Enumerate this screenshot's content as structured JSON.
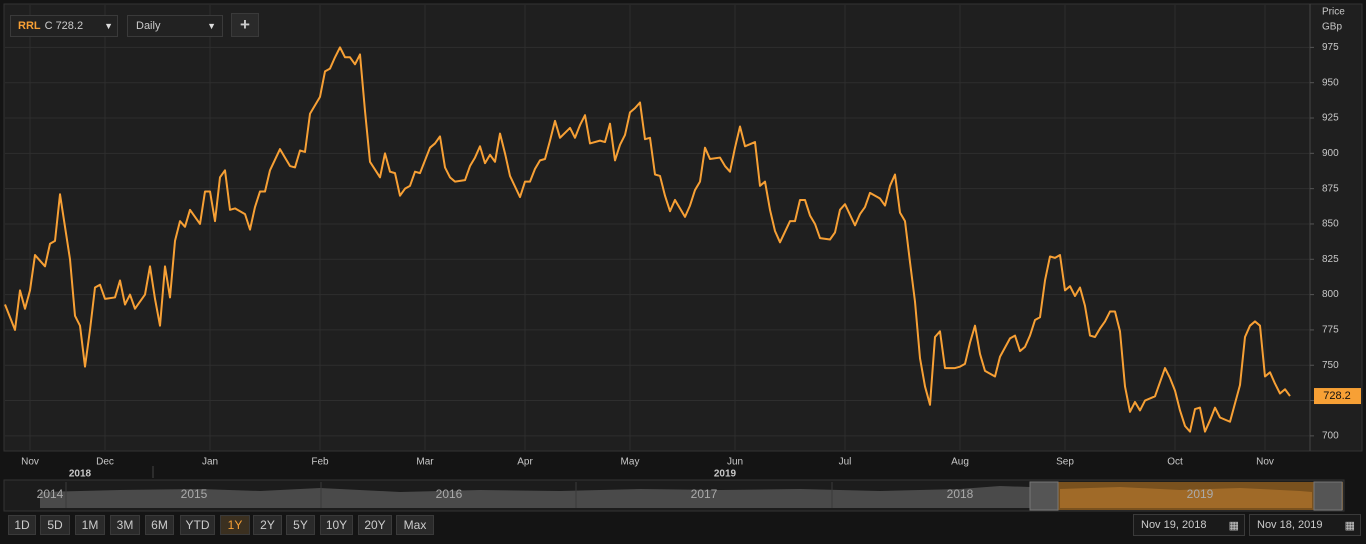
{
  "toolbar": {
    "symbol": "RRL",
    "close_prefix": "C",
    "close": "728.2",
    "interval": "Daily",
    "add": "+"
  },
  "chart_data": {
    "type": "line",
    "y_label": "Price",
    "y_unit": "GBp",
    "color": "#f7a035",
    "grid": true,
    "xlim": [
      0,
      261
    ],
    "ylim": [
      690,
      1005
    ],
    "yticks": [
      700,
      725,
      750,
      775,
      800,
      825,
      850,
      875,
      900,
      925,
      950,
      975
    ],
    "xticks": [
      {
        "value": 5,
        "label": "Nov"
      },
      {
        "value": 20,
        "label": "Dec"
      },
      {
        "value": 41,
        "label": "Jan"
      },
      {
        "value": 63,
        "label": "Feb"
      },
      {
        "value": 84,
        "label": "Mar"
      },
      {
        "value": 104,
        "label": "Apr"
      },
      {
        "value": 125,
        "label": "May"
      },
      {
        "value": 146,
        "label": "Jun"
      },
      {
        "value": 168,
        "label": "Jul"
      },
      {
        "value": 191,
        "label": "Aug"
      },
      {
        "value": 212,
        "label": "Sep"
      },
      {
        "value": 234,
        "label": "Oct"
      },
      {
        "value": 252,
        "label": "Nov"
      }
    ],
    "year_ticks": [
      {
        "value": 15,
        "label": "2018"
      },
      {
        "value": 144,
        "label": "2019"
      }
    ],
    "last_value": 728.2,
    "x": [
      0,
      2,
      3,
      4,
      5,
      6,
      8,
      9,
      10,
      11,
      13,
      14,
      15,
      16,
      17,
      18,
      19,
      20,
      22,
      23,
      24,
      25,
      26,
      28,
      29,
      30,
      31,
      32,
      33,
      34,
      35,
      36,
      37,
      39,
      40,
      41,
      42,
      43,
      44,
      45,
      46,
      48,
      49,
      50,
      51,
      52,
      53,
      55,
      56,
      57,
      58,
      59,
      60,
      61,
      63,
      64,
      65,
      66,
      67,
      68,
      69,
      70,
      71,
      72,
      73,
      75,
      76,
      77,
      78,
      79,
      80,
      81,
      82,
      83,
      85,
      86,
      87,
      88,
      89,
      90,
      92,
      93,
      94,
      95,
      96,
      97,
      98,
      99,
      100,
      101,
      103,
      104,
      105,
      106,
      107,
      108,
      109,
      110,
      111,
      113,
      114,
      115,
      116,
      117,
      119,
      120,
      121,
      122,
      123,
      124,
      125,
      126,
      127,
      128,
      129,
      130,
      131,
      132,
      133,
      134,
      136,
      137,
      138,
      139,
      140,
      141,
      143,
      144,
      145,
      146,
      147,
      148,
      150,
      151,
      152,
      153,
      154,
      155,
      157,
      158,
      159,
      160,
      161,
      162,
      163,
      165,
      166,
      167,
      168,
      170,
      171,
      172,
      173,
      175,
      176,
      177,
      178,
      179,
      180,
      181,
      182,
      183,
      184,
      185,
      186,
      187,
      188,
      189,
      190,
      191,
      192,
      193,
      194,
      195,
      196,
      198,
      199,
      201,
      202,
      203,
      204,
      205,
      206,
      207,
      208,
      209,
      210,
      211,
      212,
      213,
      214,
      215,
      216,
      217,
      218,
      219,
      220,
      221,
      222,
      223,
      224,
      225,
      226,
      227,
      228,
      230,
      231,
      232,
      233,
      234,
      235,
      236,
      237,
      238,
      239,
      240,
      241,
      242,
      243,
      245,
      246,
      247,
      248,
      249,
      250,
      251,
      252,
      253,
      254,
      255,
      256,
      257
    ],
    "values": [
      793,
      775,
      803,
      790,
      803,
      828,
      820,
      836,
      838,
      871,
      825,
      785,
      778,
      749,
      775,
      805,
      807,
      797,
      798,
      810,
      793,
      800,
      790,
      800,
      820,
      797,
      778,
      820,
      798,
      838,
      852,
      848,
      860,
      850,
      873,
      873,
      852,
      883,
      888,
      860,
      861,
      857,
      846,
      862,
      873,
      873,
      888,
      903,
      897,
      891,
      890,
      902,
      901,
      928,
      940,
      958,
      960,
      968,
      975,
      968,
      968,
      963,
      970,
      930,
      894,
      883,
      900,
      887,
      886,
      870,
      875,
      877,
      887,
      886,
      904,
      907,
      912,
      890,
      883,
      880,
      881,
      891,
      897,
      905,
      893,
      899,
      894,
      914,
      900,
      884,
      869,
      880,
      880,
      889,
      895,
      896,
      909,
      923,
      911,
      918,
      911,
      920,
      927,
      907,
      909,
      908,
      921,
      895,
      906,
      913,
      929,
      932,
      936,
      910,
      911,
      885,
      884,
      870,
      859,
      867,
      855,
      863,
      874,
      880,
      904,
      896,
      897,
      891,
      887,
      904,
      919,
      905,
      908,
      877,
      880,
      860,
      845,
      837,
      852,
      852,
      867,
      867,
      856,
      850,
      840,
      839,
      844,
      860,
      864,
      849,
      857,
      862,
      872,
      868,
      863,
      877,
      885,
      858,
      852,
      823,
      795,
      755,
      735,
      722,
      770,
      774,
      748,
      748,
      748,
      749,
      751,
      766,
      778,
      758,
      746,
      742,
      756,
      769,
      771,
      760,
      763,
      771,
      782,
      784,
      810,
      827,
      826,
      828,
      803,
      806,
      799,
      805,
      792,
      771,
      770,
      776,
      781,
      788,
      788,
      774,
      735,
      717,
      724,
      718,
      725,
      728,
      738,
      748,
      741,
      732,
      718,
      707,
      703,
      719,
      720,
      703,
      711,
      720,
      713,
      710,
      723,
      736,
      770,
      778,
      781,
      778,
      742,
      745,
      737,
      730,
      733,
      728.2
    ]
  },
  "navigator": {
    "years": [
      "2014",
      "2015",
      "2016",
      "2017",
      "2018",
      "2019"
    ]
  },
  "range_buttons": [
    "1D",
    "5D",
    "1M",
    "3M",
    "6M",
    "YTD",
    "1Y",
    "2Y",
    "5Y",
    "10Y",
    "20Y",
    "Max"
  ],
  "date_range": {
    "from": "Nov 19, 2018",
    "to": "Nov 18, 2019"
  }
}
